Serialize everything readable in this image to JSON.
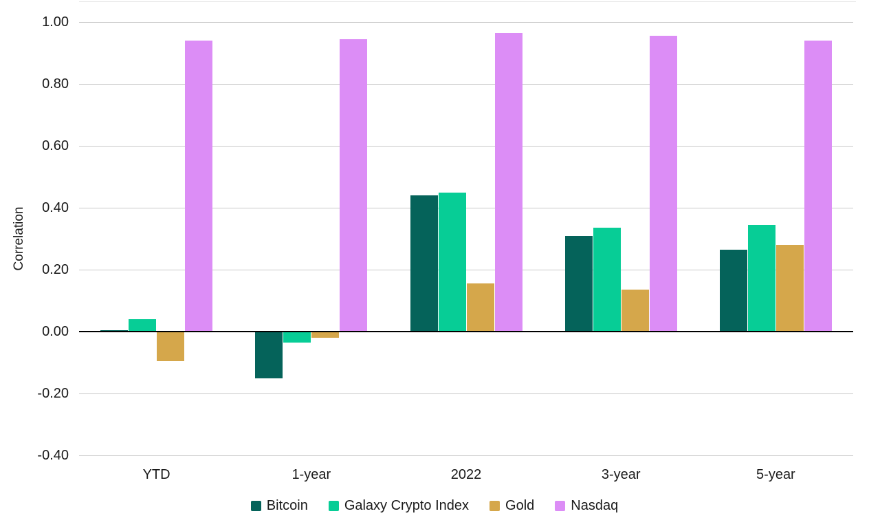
{
  "chart_data": {
    "type": "bar",
    "title": "",
    "ylabel": "Correlation",
    "categories": [
      "YTD",
      "1-year",
      "2022",
      "3-year",
      "5-year"
    ],
    "series": [
      {
        "name": "Bitcoin",
        "color": "#05635A",
        "values": [
          0.005,
          -0.15,
          0.44,
          0.31,
          0.265
        ]
      },
      {
        "name": "Galaxy Crypto Index",
        "color": "#07CD96",
        "values": [
          0.04,
          -0.035,
          0.45,
          0.335,
          0.345
        ]
      },
      {
        "name": "Gold",
        "color": "#D5A74B",
        "values": [
          -0.095,
          -0.02,
          0.155,
          0.135,
          0.28
        ]
      },
      {
        "name": "Nasdaq",
        "color": "#DC8DF6",
        "values": [
          0.94,
          0.945,
          0.965,
          0.955,
          0.94
        ]
      }
    ],
    "yaxis": {
      "min": -0.4,
      "max": 1.0,
      "tick_step": 0.2,
      "tick_labels": [
        "1.00",
        "0.80",
        "0.60",
        "0.40",
        "0.20",
        "0.00",
        "-0.20",
        "-0.40"
      ],
      "tick_values": [
        1.0,
        0.8,
        0.6,
        0.4,
        0.2,
        0.0,
        -0.2,
        -0.4
      ],
      "grid": true
    },
    "legend_position": "bottom"
  },
  "colors": {
    "background": "#ffffff",
    "gridline": "#c8c8c8",
    "zero_axis": "#000000",
    "text": "#1a1a1a"
  }
}
